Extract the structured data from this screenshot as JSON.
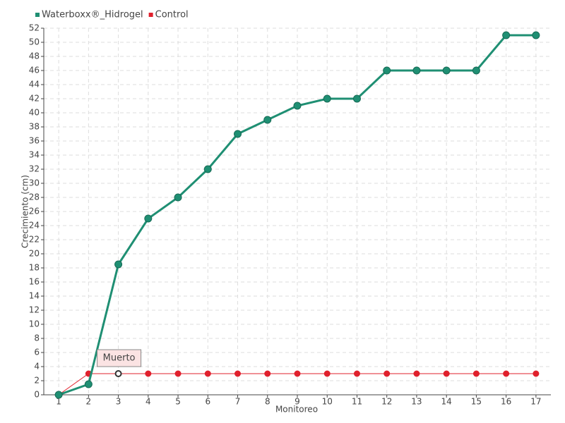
{
  "chart_data": {
    "type": "line",
    "x_label": "Monitoreo",
    "y_label": "Crecimiento (cm)",
    "categories": [
      "1",
      "2",
      "3",
      "4",
      "5",
      "6",
      "7",
      "8",
      "9",
      "10",
      "11",
      "12",
      "13",
      "14",
      "15",
      "16",
      "17"
    ],
    "series": [
      {
        "name": "Waterboxx®_Hidrogel",
        "color": "#1f8f73",
        "values": [
          0,
          1.5,
          18.5,
          25,
          28,
          32,
          37,
          39,
          41,
          42,
          42,
          46,
          46,
          46,
          46,
          51,
          51
        ]
      },
      {
        "name": "Control",
        "color": "#e0202c",
        "values": [
          0,
          3,
          3,
          3,
          3,
          3,
          3,
          3,
          3,
          3,
          3,
          3,
          3,
          3,
          3,
          3,
          3
        ]
      }
    ],
    "annotation": "Muerto",
    "ylim": [
      0,
      52
    ],
    "yticks": [
      0,
      2,
      4,
      6,
      8,
      10,
      12,
      14,
      16,
      18,
      20,
      22,
      24,
      26,
      28,
      30,
      32,
      34,
      36,
      38,
      40,
      42,
      44,
      46,
      48,
      50,
      52
    ],
    "grid": true,
    "legend": "top-left"
  }
}
